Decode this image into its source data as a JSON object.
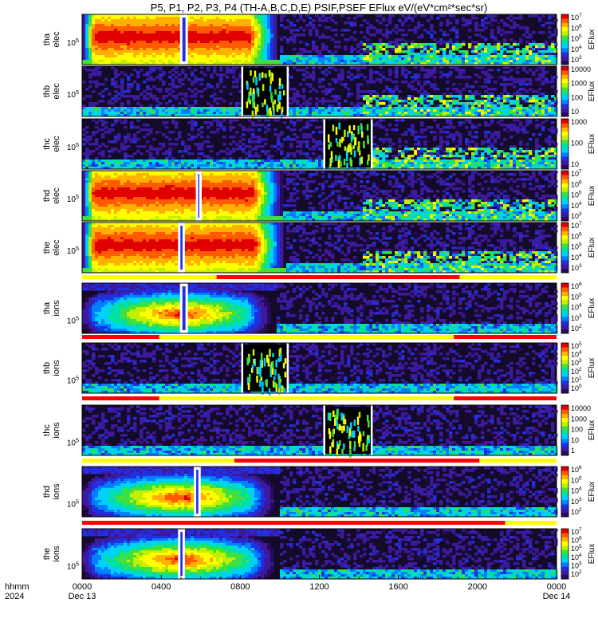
{
  "chart_data": {
    "type": "heatmap",
    "title": "P5, P1, P2, P3, P4 (TH-A,B,C,D,E) PSIF,PSEF EFlux eV/(eV*cm²*sec*sr)",
    "x_axis": {
      "ticks": [
        "0000",
        "0400",
        "0800",
        "1200",
        "1600",
        "2000",
        "0000"
      ],
      "tick_hours": [
        0,
        4,
        8,
        12,
        16,
        20,
        24
      ],
      "date_labels": [
        "Dec 13",
        "Dec 14"
      ],
      "format_label": "hhmm",
      "year_label": "2024",
      "range_hours": [
        0,
        24
      ]
    },
    "panels": [
      {
        "label1": "tha",
        "label2": "elec",
        "species": "electron",
        "ytick": "10^5",
        "ztitle": "EFlux",
        "zticks": [
          "10^3",
          "10^4",
          "10^5",
          "10^6",
          "10^7"
        ],
        "log_labels": true,
        "gaps_hours": [
          [
            4.95,
            5.35
          ]
        ],
        "hot_until_hours": 10.0,
        "burst_hours": null
      },
      {
        "label1": "thb",
        "label2": "elec",
        "species": "electron",
        "ytick": "10^5",
        "ztitle": "EFlux",
        "zticks": [
          "10",
          "100",
          "1000",
          "10000"
        ],
        "log_labels": false,
        "gaps_hours": [],
        "hot_until_hours": 0,
        "burst_hours": [
          8.1,
          10.4
        ]
      },
      {
        "label1": "thc",
        "label2": "elec",
        "species": "electron",
        "ytick": "10^5",
        "ztitle": "EFlux",
        "zticks": [
          "10",
          "100",
          "1000"
        ],
        "log_labels": false,
        "gaps_hours": [],
        "hot_until_hours": 0,
        "burst_hours": [
          12.25,
          14.65
        ]
      },
      {
        "label1": "thd",
        "label2": "elec",
        "species": "electron",
        "ytick": "10^5",
        "ztitle": "EFlux",
        "zticks": [
          "10^3",
          "10^4",
          "10^5",
          "10^6",
          "10^7"
        ],
        "log_labels": true,
        "gaps_hours": [
          [
            5.75,
            6.05
          ]
        ],
        "hot_until_hours": 10.2,
        "burst_hours": null
      },
      {
        "label1": "the",
        "label2": "elec",
        "species": "electron",
        "ytick": "10^5",
        "ztitle": "EFlux",
        "zticks": [
          "10^3",
          "10^4",
          "10^5",
          "10^6",
          "10^7"
        ],
        "log_labels": true,
        "gaps_hours": [
          [
            4.85,
            5.2
          ]
        ],
        "hot_until_hours": 10.3,
        "burst_hours": null
      },
      {
        "label1": "tha",
        "label2": "ions",
        "species": "ion",
        "ytick": "10^5",
        "ztitle": "EFlux",
        "zticks": [
          "10^2",
          "10^3",
          "10^4",
          "10^5",
          "10^6"
        ],
        "log_labels": true,
        "gaps_hours": [
          [
            4.95,
            5.35
          ]
        ],
        "hot_until_hours": 9.8,
        "burst_hours": null
      },
      {
        "label1": "thb",
        "label2": "ions",
        "species": "ion",
        "ytick": "10^5",
        "ztitle": "EFlux",
        "zticks": [
          "10^0",
          "10^1",
          "10^2",
          "10^3",
          "10^4",
          "10^5"
        ],
        "log_labels": true,
        "gaps_hours": [],
        "hot_until_hours": 0,
        "burst_hours": [
          8.1,
          10.4
        ]
      },
      {
        "label1": "thc",
        "label2": "ions",
        "species": "ion",
        "ytick": "10^5",
        "ztitle": "EFlux",
        "zticks": [
          "1",
          "10",
          "100",
          "1000",
          "10000"
        ],
        "log_labels": false,
        "gaps_hours": [],
        "hot_until_hours": 0,
        "burst_hours": [
          12.25,
          14.65
        ]
      },
      {
        "label1": "thd",
        "label2": "ions",
        "species": "ion",
        "ytick": "10^5",
        "ztitle": "EFlux",
        "zticks": [
          "10^2",
          "10^3",
          "10^4",
          "10^5",
          "10^6"
        ],
        "log_labels": true,
        "gaps_hours": [
          [
            5.65,
            6.0
          ]
        ],
        "hot_until_hours": 10.0,
        "burst_hours": null
      },
      {
        "label1": "the",
        "label2": "ions",
        "species": "ion",
        "ytick": "10^5",
        "ztitle": "EFlux",
        "zticks": [
          "10^2",
          "10^3",
          "10^4",
          "10^5",
          "10^6",
          "10^7"
        ],
        "log_labels": true,
        "gaps_hours": [
          [
            4.85,
            5.2
          ]
        ],
        "hot_until_hours": 10.0,
        "burst_hours": null
      }
    ],
    "mode_bars": [
      {
        "after_panel": 4,
        "segments": [
          {
            "from": 0,
            "to": 6.8,
            "color": "#ffff00"
          },
          {
            "from": 6.8,
            "to": 19.1,
            "color": "#ff0000"
          },
          {
            "from": 19.1,
            "to": 24,
            "color": "#ffff00"
          }
        ]
      },
      {
        "after_panel": 5,
        "segments": [
          {
            "from": 0,
            "to": 3.9,
            "color": "#ff0000"
          },
          {
            "from": 3.9,
            "to": 18.8,
            "color": "#ffff00"
          },
          {
            "from": 18.8,
            "to": 24,
            "color": "#ff0000"
          }
        ]
      },
      {
        "after_panel": 6,
        "segments": [
          {
            "from": 0,
            "to": 3.9,
            "color": "#ff0000"
          },
          {
            "from": 3.9,
            "to": 18.8,
            "color": "#ffff00"
          },
          {
            "from": 18.8,
            "to": 24,
            "color": "#ff0000"
          }
        ]
      },
      {
        "after_panel": 7,
        "segments": [
          {
            "from": 0,
            "to": 7.7,
            "color": "#ffff00"
          },
          {
            "from": 7.7,
            "to": 20.1,
            "color": "#ff0000"
          },
          {
            "from": 20.1,
            "to": 24,
            "color": "#ffff00"
          }
        ]
      },
      {
        "after_panel": 8,
        "segments": [
          {
            "from": 0,
            "to": 21.4,
            "color": "#ff0000"
          },
          {
            "from": 21.4,
            "to": 24,
            "color": "#ffff00"
          }
        ]
      }
    ],
    "colormap": [
      "#2a0a5e",
      "#3b1a9e",
      "#2030e0",
      "#0080ff",
      "#00d0ff",
      "#00e0a0",
      "#40e040",
      "#c0f000",
      "#ffff00",
      "#ffb000",
      "#ff5a00",
      "#e00000"
    ]
  }
}
